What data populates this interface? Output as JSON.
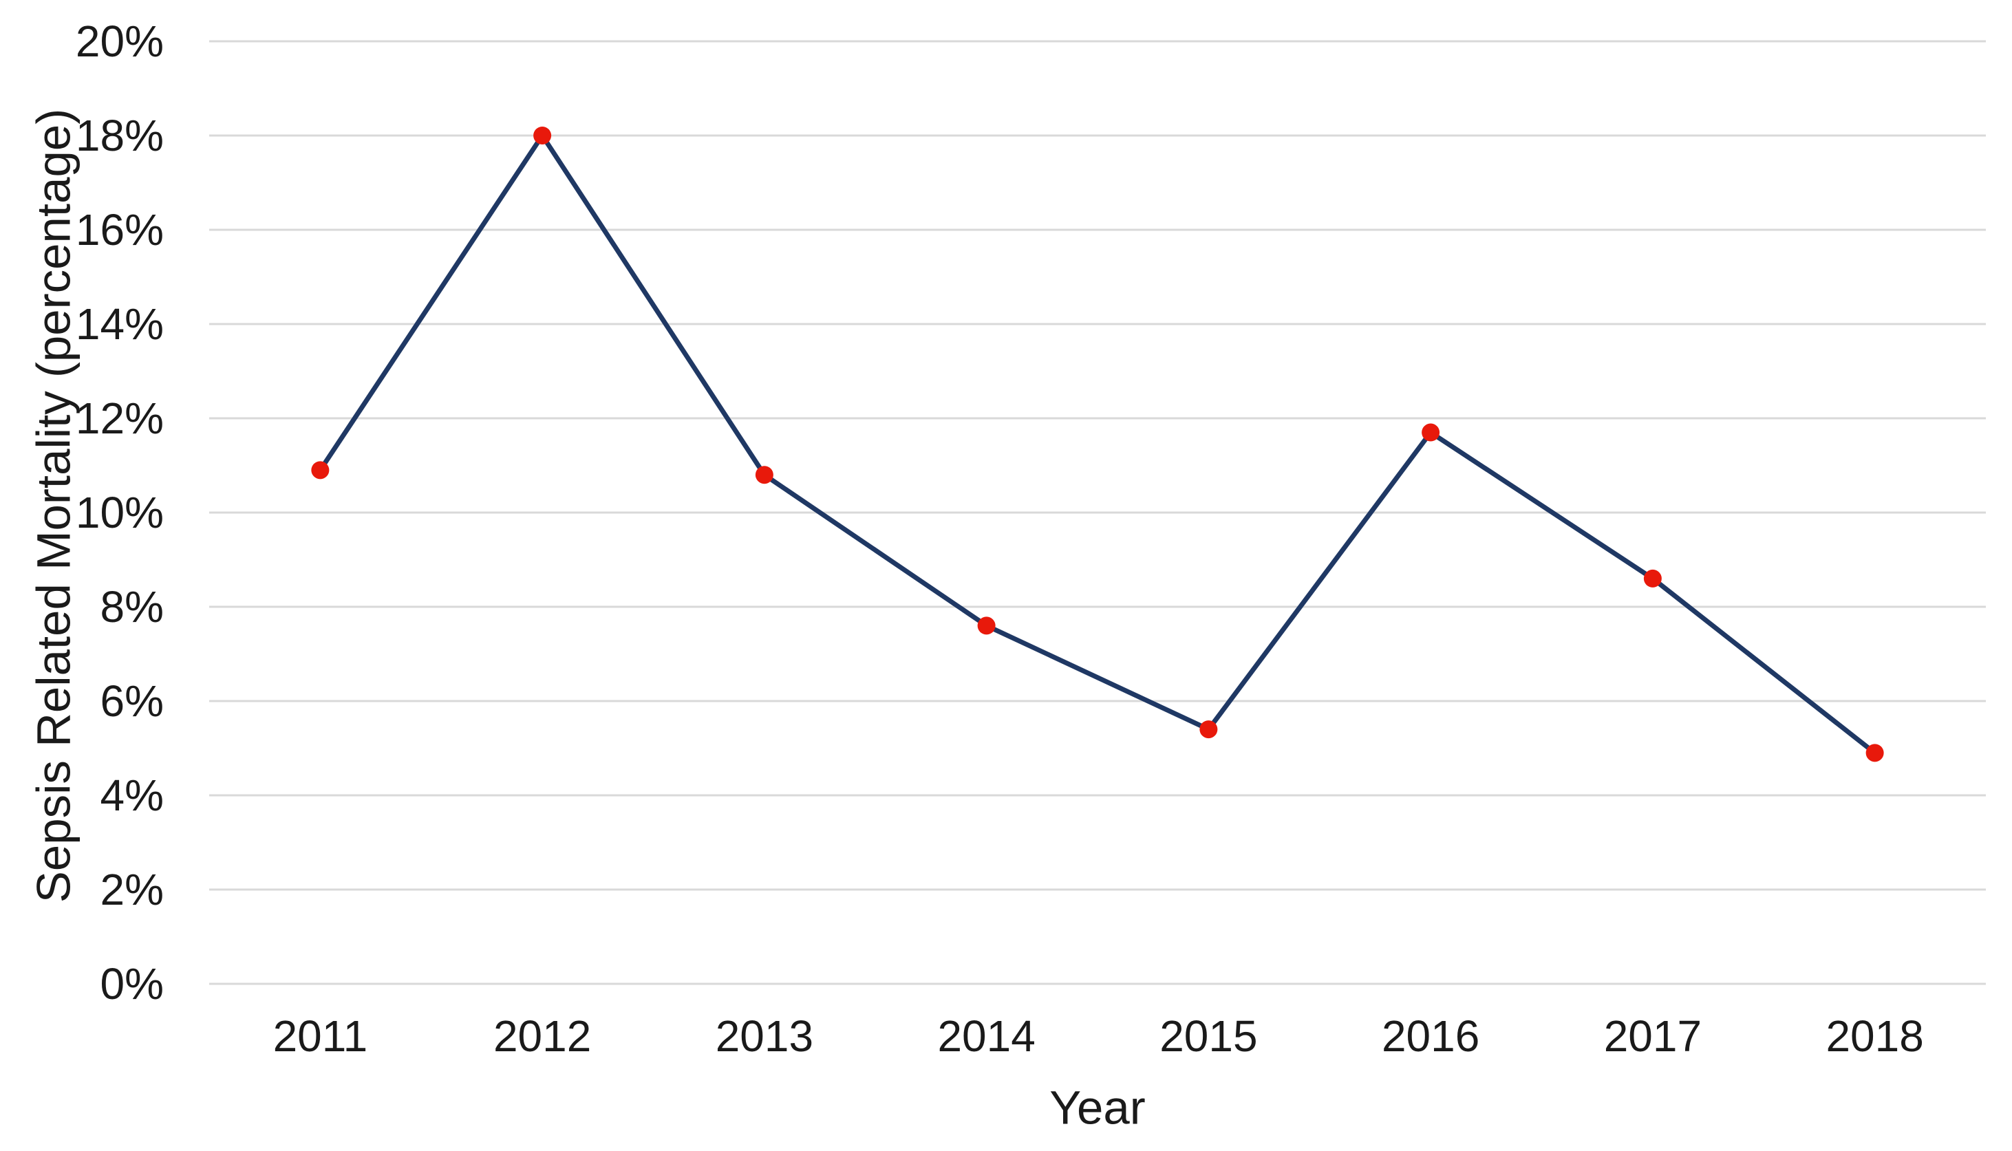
{
  "chart_data": {
    "type": "line",
    "title": "",
    "xlabel": "Year",
    "ylabel": "Sepsis Related Mortality (percentage)",
    "categories": [
      "2011",
      "2012",
      "2013",
      "2014",
      "2015",
      "2016",
      "2017",
      "2018"
    ],
    "series": [
      {
        "name": "Sepsis Related Mortality",
        "values": [
          10.9,
          18,
          10.8,
          7.6,
          5.4,
          11.7,
          8.6,
          4.9
        ]
      }
    ],
    "ylim": [
      0,
      20
    ],
    "ytick_step": 2,
    "ytick_labels": [
      "0%",
      "2%",
      "4%",
      "6%",
      "8%",
      "10%",
      "12%",
      "14%",
      "16%",
      "18%",
      "20%"
    ],
    "grid": "horizontal",
    "legend": "none",
    "colors": {
      "line": "#1f3864",
      "marker": "#e8190b",
      "gridline": "#d9d9d9",
      "text": "#1a1a1a",
      "background": "#ffffff"
    }
  }
}
